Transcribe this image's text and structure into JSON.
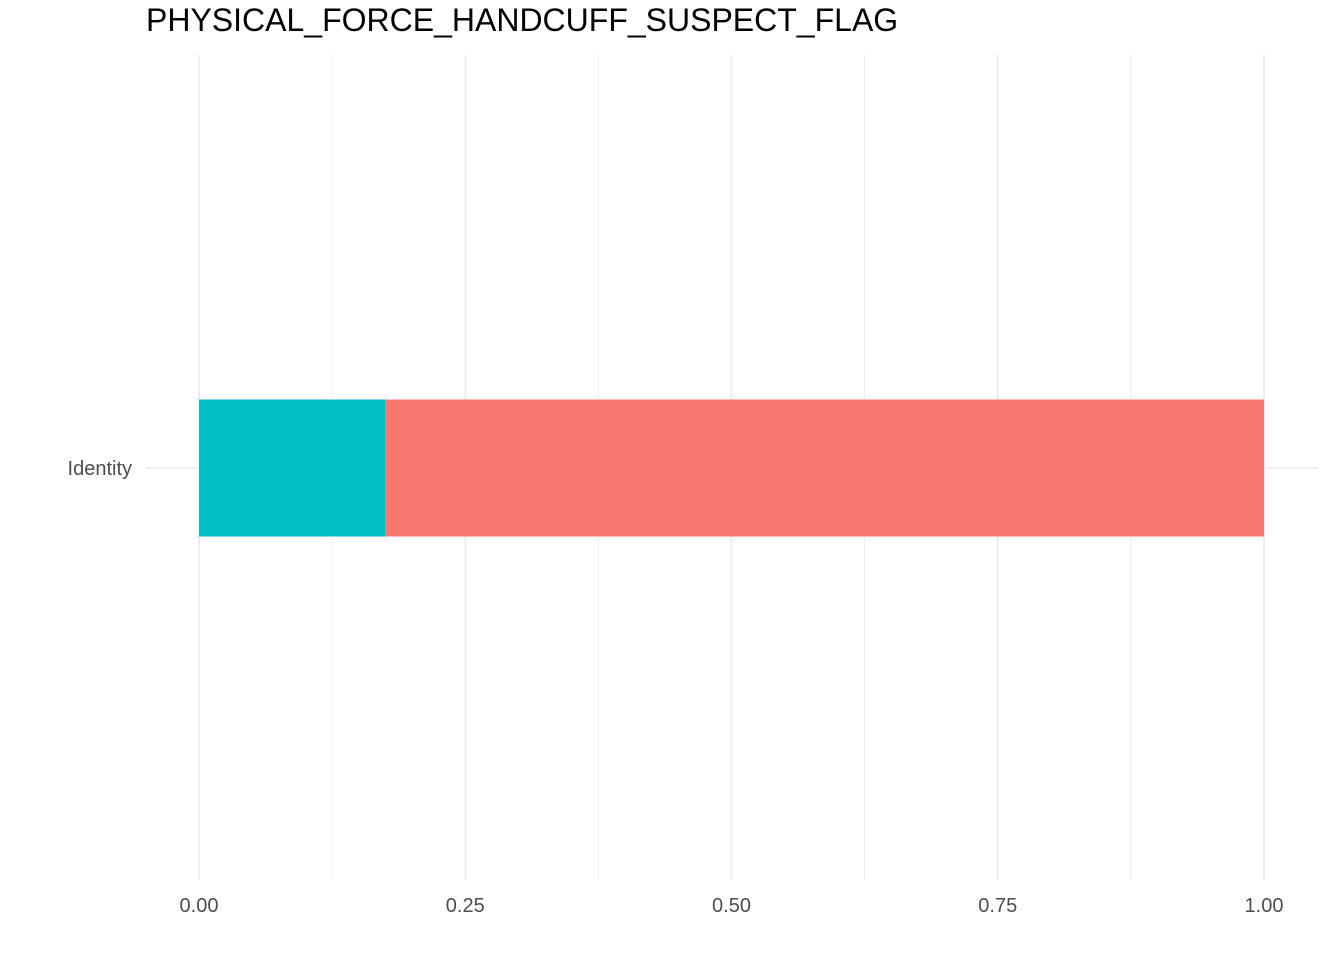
{
  "chart_data": {
    "type": "bar",
    "orientation": "horizontal",
    "stacked": true,
    "title": "PHYSICAL_FORCE_HANDCUFF_SUSPECT_FLAG",
    "xlabel": "",
    "ylabel": "",
    "categories": [
      "Identity"
    ],
    "series": [
      {
        "values": [
          0.175
        ],
        "color": "#00BFC4"
      },
      {
        "values": [
          0.825
        ],
        "color": "#F8766D"
      }
    ],
    "xlim": [
      0,
      1
    ],
    "x_ticks": [
      0,
      0.25,
      0.5,
      0.75,
      1
    ],
    "x_tick_labels": [
      "0.00",
      "0.25",
      "0.50",
      "0.75",
      "1.00"
    ],
    "grid": true,
    "legend": "none"
  }
}
